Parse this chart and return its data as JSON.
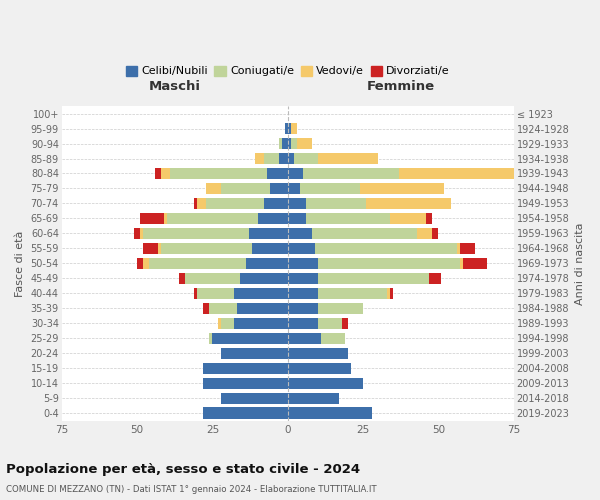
{
  "age_groups": [
    "0-4",
    "5-9",
    "10-14",
    "15-19",
    "20-24",
    "25-29",
    "30-34",
    "35-39",
    "40-44",
    "45-49",
    "50-54",
    "55-59",
    "60-64",
    "65-69",
    "70-74",
    "75-79",
    "80-84",
    "85-89",
    "90-94",
    "95-99",
    "100+"
  ],
  "birth_years": [
    "2019-2023",
    "2014-2018",
    "2009-2013",
    "2004-2008",
    "1999-2003",
    "1994-1998",
    "1989-1993",
    "1984-1988",
    "1979-1983",
    "1974-1978",
    "1969-1973",
    "1964-1968",
    "1959-1963",
    "1954-1958",
    "1949-1953",
    "1944-1948",
    "1939-1943",
    "1934-1938",
    "1929-1933",
    "1924-1928",
    "≤ 1923"
  ],
  "colors": {
    "celibe": "#3d6faa",
    "coniugato": "#c0d49a",
    "vedovo": "#f5c96a",
    "divorziato": "#cc2222"
  },
  "maschi": {
    "celibe": [
      28,
      22,
      28,
      28,
      22,
      25,
      18,
      17,
      18,
      16,
      14,
      12,
      13,
      10,
      8,
      6,
      7,
      3,
      2,
      1,
      0
    ],
    "coniugato": [
      0,
      0,
      0,
      0,
      0,
      1,
      4,
      9,
      12,
      18,
      32,
      30,
      35,
      30,
      19,
      16,
      32,
      5,
      1,
      0,
      0
    ],
    "vedovo": [
      0,
      0,
      0,
      0,
      0,
      0,
      1,
      0,
      0,
      0,
      2,
      1,
      1,
      1,
      3,
      5,
      3,
      3,
      0,
      0,
      0
    ],
    "divorziato": [
      0,
      0,
      0,
      0,
      0,
      0,
      0,
      2,
      1,
      2,
      2,
      5,
      2,
      8,
      1,
      0,
      2,
      0,
      0,
      0,
      0
    ]
  },
  "femmine": {
    "nubile": [
      28,
      17,
      25,
      21,
      20,
      11,
      10,
      10,
      10,
      10,
      10,
      9,
      8,
      6,
      6,
      4,
      5,
      2,
      1,
      1,
      0
    ],
    "coniugata": [
      0,
      0,
      0,
      0,
      0,
      8,
      8,
      15,
      23,
      37,
      47,
      47,
      35,
      28,
      20,
      20,
      32,
      8,
      2,
      0,
      0
    ],
    "vedova": [
      0,
      0,
      0,
      0,
      0,
      0,
      0,
      0,
      1,
      0,
      1,
      1,
      5,
      12,
      28,
      28,
      42,
      20,
      5,
      2,
      0
    ],
    "divorziata": [
      0,
      0,
      0,
      0,
      0,
      0,
      2,
      0,
      1,
      4,
      8,
      5,
      2,
      2,
      0,
      0,
      2,
      0,
      0,
      0,
      0
    ]
  },
  "xlim": 75,
  "title": "Popolazione per età, sesso e stato civile - 2024",
  "subtitle": "COMUNE DI MEZZANO (TN) - Dati ISTAT 1° gennaio 2024 - Elaborazione TUTTITALIA.IT",
  "ylabel_left": "Fasce di età",
  "ylabel_right": "Anni di nascita",
  "xlabel_maschi": "Maschi",
  "xlabel_femmine": "Femmine",
  "bg_color": "#f0f0f0",
  "plot_bg": "#ffffff"
}
